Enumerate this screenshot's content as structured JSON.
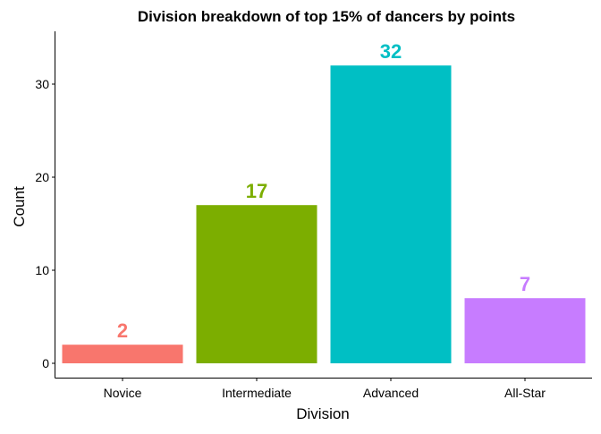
{
  "chart_data": {
    "type": "bar",
    "title": "Division breakdown of top 15% of dancers by points",
    "xlabel": "Division",
    "ylabel": "Count",
    "categories": [
      "Novice",
      "Intermediate",
      "Advanced",
      "All-Star"
    ],
    "values": [
      2,
      17,
      32,
      7
    ],
    "value_labels": [
      "2",
      "17",
      "32",
      "7"
    ],
    "colors": [
      "#F8766D",
      "#7CAE00",
      "#00BFC4",
      "#C77CFF"
    ],
    "ylim": [
      0,
      35.5
    ],
    "yticks": [
      0,
      10,
      20,
      30
    ],
    "ytick_labels": [
      "0",
      "10",
      "20",
      "30"
    ],
    "grid": false,
    "legend": "none"
  }
}
